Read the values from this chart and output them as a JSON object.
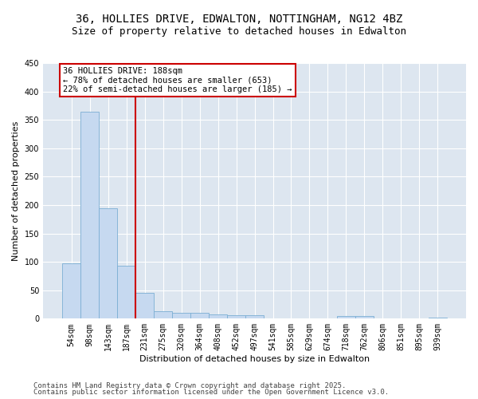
{
  "title_line1": "36, HOLLIES DRIVE, EDWALTON, NOTTINGHAM, NG12 4BZ",
  "title_line2": "Size of property relative to detached houses in Edwalton",
  "xlabel": "Distribution of detached houses by size in Edwalton",
  "ylabel": "Number of detached properties",
  "categories": [
    "54sqm",
    "98sqm",
    "143sqm",
    "187sqm",
    "231sqm",
    "275sqm",
    "320sqm",
    "364sqm",
    "408sqm",
    "452sqm",
    "497sqm",
    "541sqm",
    "585sqm",
    "629sqm",
    "674sqm",
    "718sqm",
    "762sqm",
    "806sqm",
    "851sqm",
    "895sqm",
    "939sqm"
  ],
  "values": [
    98,
    365,
    195,
    93,
    45,
    13,
    10,
    10,
    8,
    6,
    6,
    1,
    0,
    0,
    0,
    5,
    5,
    0,
    0,
    0,
    2
  ],
  "bar_color": "#c6d9f0",
  "bar_edge_color": "#7bafd4",
  "marker_line_index": 3,
  "marker_color": "#cc0000",
  "annotation_title": "36 HOLLIES DRIVE: 188sqm",
  "annotation_line1": "← 78% of detached houses are smaller (653)",
  "annotation_line2": "22% of semi-detached houses are larger (185) →",
  "annotation_box_color": "#cc0000",
  "ylim": [
    0,
    450
  ],
  "yticks": [
    0,
    50,
    100,
    150,
    200,
    250,
    300,
    350,
    400,
    450
  ],
  "bg_color": "#dde6f0",
  "footer_line1": "Contains HM Land Registry data © Crown copyright and database right 2025.",
  "footer_line2": "Contains public sector information licensed under the Open Government Licence v3.0.",
  "title_fontsize": 10,
  "subtitle_fontsize": 9,
  "axis_label_fontsize": 8,
  "tick_fontsize": 7,
  "annotation_fontsize": 7.5,
  "footer_fontsize": 6.5
}
